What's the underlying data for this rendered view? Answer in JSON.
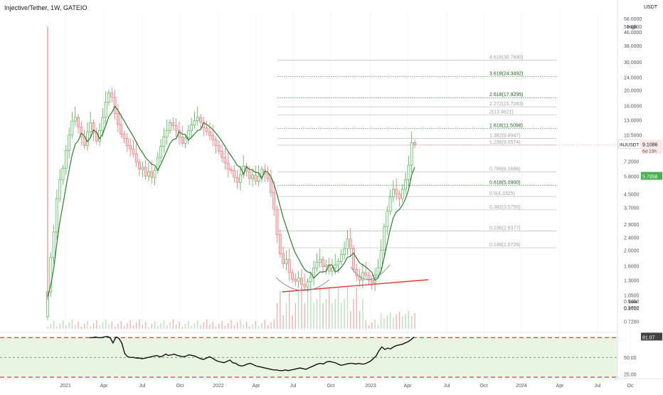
{
  "header": {
    "title": "Injective/Tether, 1W, GATEIO",
    "currency": "USDT"
  },
  "colors": {
    "up": "#4caf50",
    "down": "#e57373",
    "ema": "#2e7d32",
    "trend": "#e53935",
    "rsi": "#111111",
    "dashed": "#e53935"
  },
  "chart_data": {
    "type": "candlestick",
    "title": "Injective/Tether, 1W, GATEIO",
    "y_scale": "log",
    "ylim": [
      0.62,
      62
    ],
    "price_ticks": [
      "56.0000",
      "50.0000",
      "46.0000",
      "38.0000",
      "30.0000",
      "24.0000",
      "20.0000",
      "16.0000",
      "13.0000",
      "10.5000",
      "7.2000",
      "5.8000",
      "4.5000",
      "3.7000",
      "2.9000",
      "2.4000",
      "2.0000",
      "1.6000",
      "1.3000",
      "1.0500",
      "0.9650",
      "0.8700",
      "0.7200"
    ],
    "x_ticks": [
      "2021",
      "Apr",
      "Jul",
      "Oct",
      "2022",
      "Apr",
      "Jul",
      "Oct",
      "2023",
      "Apr",
      "Jul",
      "Oct",
      "2024",
      "Apr",
      "Jul",
      "Oc"
    ],
    "high_label": "High",
    "high_value": "50.0000",
    "low_label": "Low",
    "low_value": "0.9650",
    "last_price_badge": {
      "symbol": "INJUSDT",
      "price": "9.1086",
      "countdown": "6d 23h"
    },
    "ema_badge": "5.7958",
    "fib_levels": [
      {
        "label": "4.618(30.7690)",
        "price": 30.769,
        "color": "#bdbdbd"
      },
      {
        "label": "3.618(24.3492)",
        "price": 24.3492,
        "color": "#2e7d32"
      },
      {
        "label": "2.618(17.9295)",
        "price": 17.9295,
        "color": "#2e7d32"
      },
      {
        "label": "2.272(15.7083)",
        "price": 15.7083,
        "color": "#bdbdbd"
      },
      {
        "label": "2(13.9621)",
        "price": 13.9621,
        "color": "#bdbdbd"
      },
      {
        "label": "1.618(11.5098)",
        "price": 11.5098,
        "color": "#2e7d32"
      },
      {
        "label": "1.382(9.9947)",
        "price": 9.9947,
        "color": "#bdbdbd"
      },
      {
        "label": "1.236(9.0574)",
        "price": 9.0574,
        "color": "#bdbdbd"
      },
      {
        "label": "0.786(6.1686)",
        "price": 6.1686,
        "color": "#bdbdbd"
      },
      {
        "label": "0.618(5.0900)",
        "price": 5.09,
        "color": "#2e7d32"
      },
      {
        "label": "0.5(4.3325)",
        "price": 4.3325,
        "color": "#bdbdbd"
      },
      {
        "label": "0.382(3.5750)",
        "price": 3.575,
        "color": "#bdbdbd"
      },
      {
        "label": "0.236(2.6377)",
        "price": 2.6377,
        "color": "#bdbdbd"
      },
      {
        "label": "0.148(2.0728)",
        "price": 2.0728,
        "color": "#bdbdbd"
      }
    ],
    "weekly_close": [
      1.1,
      1.8,
      2.6,
      4.2,
      5.5,
      6.5,
      8.4,
      10.5,
      12.8,
      13.5,
      11.8,
      10.2,
      9.0,
      11.0,
      12.5,
      10.8,
      9.6,
      11.2,
      13.5,
      16.8,
      19.2,
      18.0,
      14.3,
      12.2,
      10.6,
      10.0,
      9.0,
      8.6,
      8.0,
      7.1,
      6.4,
      6.6,
      5.8,
      6.2,
      5.7,
      6.3,
      7.6,
      8.9,
      10.2,
      11.2,
      12.5,
      12.0,
      11.2,
      10.2,
      9.3,
      10.1,
      11.2,
      12.1,
      12.9,
      13.5,
      12.6,
      11.6,
      11.0,
      10.4,
      9.8,
      9.0,
      8.3,
      7.6,
      7.0,
      6.4,
      6.3,
      5.7,
      5.3,
      5.9,
      6.7,
      6.2,
      5.6,
      5.9,
      5.4,
      5.8,
      6.4,
      6.0,
      5.6,
      4.6,
      3.6,
      2.5,
      1.9,
      1.65,
      1.75,
      1.45,
      1.32,
      1.28,
      1.34,
      1.22,
      1.18,
      1.27,
      1.36,
      1.55,
      1.68,
      1.75,
      1.58,
      1.62,
      1.48,
      1.55,
      1.62,
      1.7,
      1.88,
      2.05,
      2.35,
      2.05,
      1.52,
      1.38,
      1.3,
      1.45,
      1.4,
      1.3,
      1.25,
      1.4,
      1.55,
      2.0,
      2.8,
      3.5,
      4.3,
      4.8,
      4.5,
      4.2,
      4.8,
      5.5,
      6.8,
      9.4,
      9.11
    ],
    "rsi": {
      "value_label": "81.07",
      "current": 81.07,
      "ylim": [
        20,
        88
      ],
      "ticks": [
        "50.00",
        "25.00"
      ],
      "levels": [
        80,
        50,
        20
      ],
      "values": [
        80,
        80,
        81,
        80,
        80,
        81,
        82,
        80,
        72,
        81,
        79,
        72,
        56,
        51,
        50,
        50,
        49,
        49,
        48,
        49,
        50,
        51,
        52,
        53,
        51,
        52,
        55,
        53,
        54,
        55,
        53,
        52,
        51,
        52,
        54,
        53,
        52,
        50,
        48,
        47,
        49,
        51,
        49,
        46,
        44,
        43,
        42,
        44,
        46,
        42,
        41,
        38,
        37,
        38,
        40,
        41,
        39,
        37,
        36,
        35,
        34,
        33,
        32,
        31,
        31,
        30,
        30,
        31,
        30,
        31,
        32,
        33,
        34,
        33,
        32,
        34,
        36,
        38,
        40,
        41,
        40,
        43,
        44,
        43,
        42,
        40,
        38,
        39,
        40,
        41,
        41,
        40,
        41,
        40,
        40,
        42,
        44,
        48,
        52,
        60,
        66,
        62,
        64,
        63,
        66,
        68,
        69,
        70,
        72,
        74,
        77,
        81
      ]
    }
  }
}
